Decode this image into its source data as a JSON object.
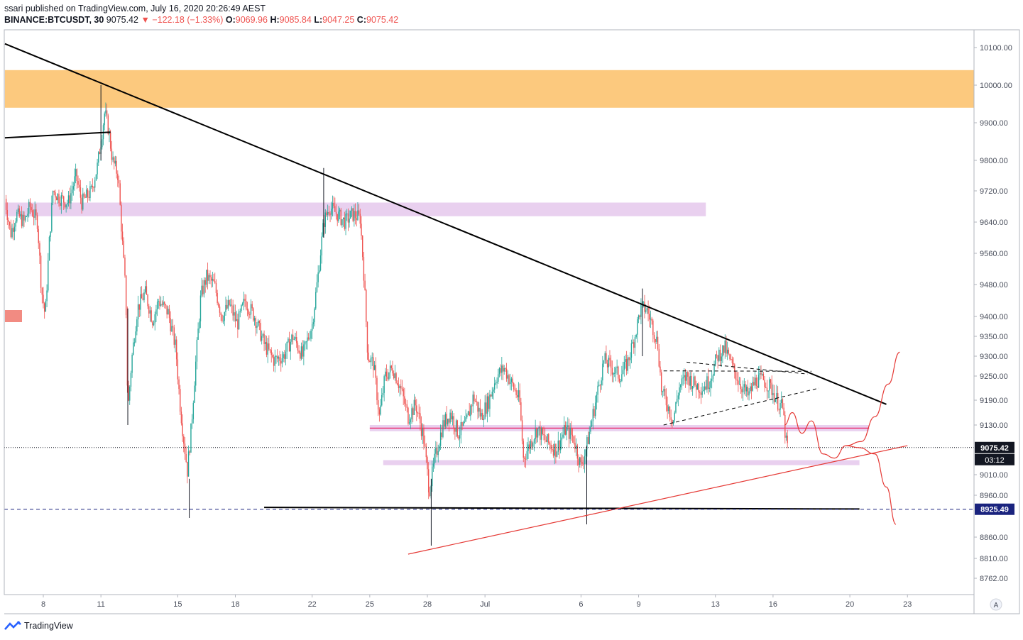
{
  "header": {
    "publish_line": "ssari published on TradingView.com, July 16, 2020 20:26:49 AEST",
    "symbol": "BINANCE:BTCUSDT, 30",
    "last": "9075.42",
    "change": "−122.18 (−1.33%)",
    "o_label": "O:",
    "o_value": "9069.96",
    "h_label": "H:",
    "h_value": "9085.84",
    "l_label": "L:",
    "l_value": "9047.25",
    "c_label": "C:",
    "c_value": "9075.42"
  },
  "footer": {
    "brand": "TradingView"
  },
  "axis_button": "A",
  "colors": {
    "up": "#26a69a",
    "down": "#ef5350",
    "resistance_zone": "#fcc97e",
    "purple_zone": "#e9d0ef",
    "trendline": "#000000",
    "projection": "#e53935"
  },
  "chart_data": {
    "type": "candlestick",
    "symbol": "BINANCE:BTCUSDT",
    "timeframe": "30",
    "ylim": [
      8730,
      10130
    ],
    "y_ticks": [
      10100,
      10000,
      9900,
      9800,
      9720,
      9640,
      9560,
      9480,
      9400,
      9350,
      9300,
      9250,
      9190,
      9130,
      9010,
      8960,
      8860,
      8810,
      8762
    ],
    "y_tick_labels": [
      "10100.00",
      "10000.00",
      "9900.00",
      "9800.00",
      "9720.00",
      "9640.00",
      "9560.00",
      "9480.00",
      "9400.00",
      "9350.00",
      "9300.00",
      "9250.00",
      "9190.00",
      "9130.00",
      "9010.00",
      "8960.00",
      "8860.00",
      "8810.00",
      "8762.00"
    ],
    "x_ticks": [
      "8",
      "11",
      "15",
      "18",
      "22",
      "25",
      "28",
      "Jul",
      "6",
      "9",
      "13",
      "16",
      "20",
      "23"
    ],
    "x_tick_days": [
      8,
      11,
      15,
      18,
      22,
      25,
      28,
      31,
      36,
      39,
      43,
      46,
      50,
      53
    ],
    "last_price": {
      "value": 9075.42,
      "label": "9075.42",
      "countdown": "03:12"
    },
    "level_line": {
      "value": 8925.49,
      "label": "8925.49"
    },
    "price_path": [
      [
        6.0,
        9700
      ],
      [
        6.3,
        9610
      ],
      [
        6.6,
        9660
      ],
      [
        7.0,
        9640
      ],
      [
        7.3,
        9680
      ],
      [
        7.7,
        9640
      ],
      [
        7.9,
        9470
      ],
      [
        8.1,
        9400
      ],
      [
        8.3,
        9580
      ],
      [
        8.5,
        9720
      ],
      [
        8.9,
        9700
      ],
      [
        9.3,
        9690
      ],
      [
        9.7,
        9760
      ],
      [
        10.0,
        9690
      ],
      [
        10.5,
        9720
      ],
      [
        10.8,
        9780
      ],
      [
        11.0,
        9850
      ],
      [
        11.2,
        9930
      ],
      [
        11.4,
        9880
      ],
      [
        11.6,
        9800
      ],
      [
        11.9,
        9760
      ],
      [
        12.1,
        9600
      ],
      [
        12.3,
        9450
      ],
      [
        12.4,
        9160
      ],
      [
        12.6,
        9290
      ],
      [
        12.9,
        9420
      ],
      [
        13.3,
        9460
      ],
      [
        13.7,
        9390
      ],
      [
        14.0,
        9440
      ],
      [
        14.5,
        9410
      ],
      [
        14.9,
        9320
      ],
      [
        15.1,
        9190
      ],
      [
        15.3,
        9100
      ],
      [
        15.5,
        9020
      ],
      [
        15.7,
        9120
      ],
      [
        15.9,
        9260
      ],
      [
        16.2,
        9450
      ],
      [
        16.5,
        9500
      ],
      [
        16.9,
        9480
      ],
      [
        17.3,
        9400
      ],
      [
        17.7,
        9430
      ],
      [
        18.1,
        9380
      ],
      [
        18.5,
        9440
      ],
      [
        19.0,
        9400
      ],
      [
        19.5,
        9330
      ],
      [
        20.0,
        9290
      ],
      [
        20.5,
        9300
      ],
      [
        21.0,
        9350
      ],
      [
        21.5,
        9300
      ],
      [
        22.0,
        9380
      ],
      [
        22.3,
        9500
      ],
      [
        22.6,
        9640
      ],
      [
        22.9,
        9680
      ],
      [
        23.3,
        9660
      ],
      [
        23.7,
        9640
      ],
      [
        24.1,
        9660
      ],
      [
        24.5,
        9650
      ],
      [
        24.7,
        9500
      ],
      [
        24.9,
        9300
      ],
      [
        25.2,
        9280
      ],
      [
        25.5,
        9150
      ],
      [
        25.8,
        9250
      ],
      [
        26.2,
        9270
      ],
      [
        26.6,
        9220
      ],
      [
        27.0,
        9150
      ],
      [
        27.4,
        9180
      ],
      [
        27.8,
        9100
      ],
      [
        28.1,
        8970
      ],
      [
        28.4,
        9050
      ],
      [
        28.8,
        9130
      ],
      [
        29.2,
        9160
      ],
      [
        29.6,
        9110
      ],
      [
        30.0,
        9130
      ],
      [
        30.4,
        9200
      ],
      [
        30.8,
        9150
      ],
      [
        31.2,
        9190
      ],
      [
        31.6,
        9250
      ],
      [
        32.0,
        9270
      ],
      [
        32.4,
        9230
      ],
      [
        32.8,
        9190
      ],
      [
        33.0,
        9050
      ],
      [
        33.3,
        9080
      ],
      [
        33.7,
        9120
      ],
      [
        34.2,
        9090
      ],
      [
        34.7,
        9070
      ],
      [
        35.2,
        9120
      ],
      [
        35.6,
        9100
      ],
      [
        36.0,
        9030
      ],
      [
        36.3,
        9080
      ],
      [
        36.6,
        9150
      ],
      [
        36.9,
        9220
      ],
      [
        37.2,
        9290
      ],
      [
        37.6,
        9270
      ],
      [
        38.0,
        9250
      ],
      [
        38.4,
        9280
      ],
      [
        38.8,
        9350
      ],
      [
        39.1,
        9420
      ],
      [
        39.4,
        9420
      ],
      [
        39.7,
        9380
      ],
      [
        40.0,
        9330
      ],
      [
        40.2,
        9210
      ],
      [
        40.5,
        9180
      ],
      [
        40.8,
        9140
      ],
      [
        41.1,
        9220
      ],
      [
        41.5,
        9250
      ],
      [
        41.9,
        9230
      ],
      [
        42.3,
        9220
      ],
      [
        42.7,
        9240
      ],
      [
        43.1,
        9300
      ],
      [
        43.5,
        9320
      ],
      [
        43.9,
        9270
      ],
      [
        44.3,
        9230
      ],
      [
        44.7,
        9200
      ],
      [
        45.1,
        9240
      ],
      [
        45.5,
        9240
      ],
      [
        45.9,
        9220
      ],
      [
        46.2,
        9190
      ],
      [
        46.5,
        9170
      ],
      [
        46.7,
        9080
      ],
      [
        46.8,
        9075
      ]
    ],
    "zones": [
      {
        "from_day": 6.0,
        "to_day": 56.5,
        "low": 9940,
        "high": 10040,
        "color": "orange"
      },
      {
        "from_day": 6.0,
        "to_day": 42.5,
        "low": 9655,
        "high": 9690,
        "color": "purple"
      },
      {
        "from_day": 25.0,
        "to_day": 51.0,
        "low": 9115,
        "high": 9130,
        "color": "purple"
      },
      {
        "from_day": 25.7,
        "to_day": 50.5,
        "low": 9033,
        "high": 9045,
        "color": "purple"
      }
    ],
    "trendlines": [
      {
        "from": [
          6.0,
          10110
        ],
        "to": [
          51.9,
          9180
        ],
        "style": "solid",
        "color": "black"
      },
      {
        "from": [
          6.0,
          9860
        ],
        "to": [
          11.5,
          9875
        ],
        "style": "solid",
        "color": "black"
      },
      {
        "from": [
          19.5,
          8930
        ],
        "to": [
          50.5,
          8926
        ],
        "style": "solid",
        "color": "black"
      },
      {
        "from": [
          27.0,
          8820
        ],
        "to": [
          53.0,
          9080
        ],
        "style": "solid",
        "color": "red"
      },
      {
        "from": [
          40.3,
          9130
        ],
        "to": [
          48.4,
          9220
        ],
        "style": "dashed",
        "color": "black"
      },
      {
        "from": [
          40.3,
          9263
        ],
        "to": [
          48.0,
          9262
        ],
        "style": "dashed",
        "color": "black"
      },
      {
        "from": [
          41.5,
          9285
        ],
        "to": [
          47.8,
          9255
        ],
        "style": "dashed",
        "color": "black"
      }
    ],
    "projections": [
      {
        "style": "curve",
        "color": "red",
        "points": [
          [
            46.6,
            9130
          ],
          [
            47.0,
            9160
          ],
          [
            47.5,
            9110
          ],
          [
            48.0,
            9140
          ],
          [
            48.6,
            9060
          ],
          [
            49.2,
            9050
          ],
          [
            49.8,
            9080
          ],
          [
            50.5,
            9075
          ],
          [
            51.3,
            9060
          ],
          [
            51.9,
            8980
          ],
          [
            52.4,
            8890
          ]
        ]
      },
      {
        "style": "curve",
        "color": "red",
        "points": [
          [
            49.8,
            9080
          ],
          [
            50.6,
            9090
          ],
          [
            51.3,
            9150
          ],
          [
            52.0,
            9230
          ],
          [
            52.6,
            9310
          ]
        ]
      }
    ]
  }
}
